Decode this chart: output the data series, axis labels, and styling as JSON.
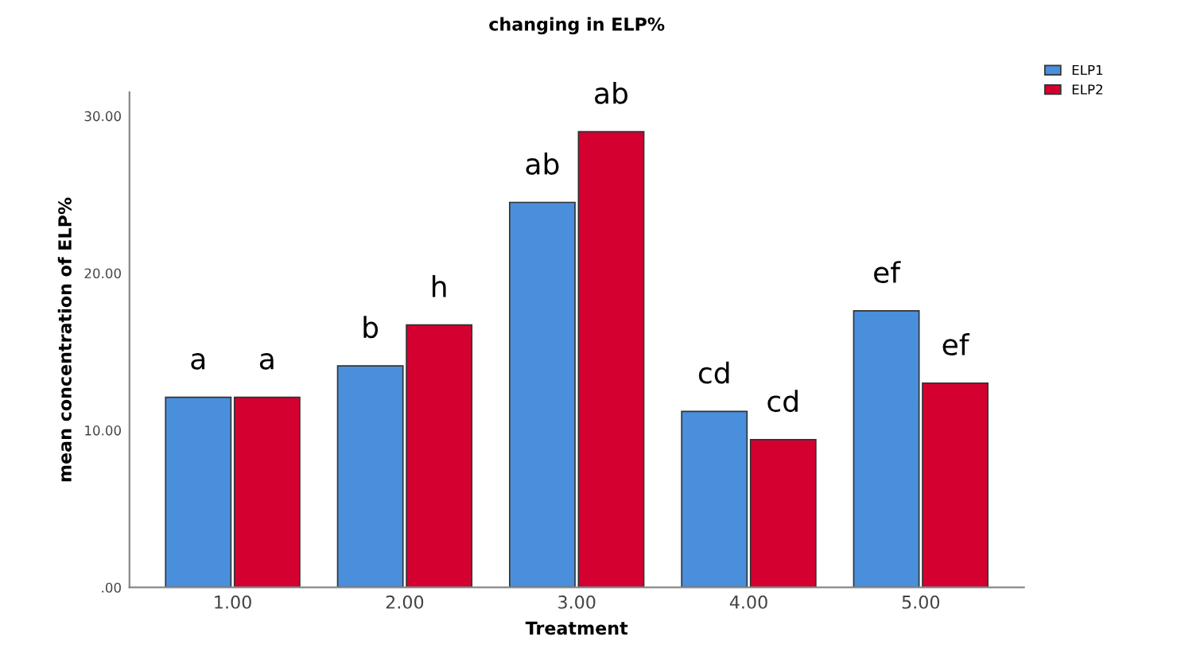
{
  "chart_data": {
    "type": "bar",
    "title": "changing in ELP%",
    "xlabel": "Treatment",
    "ylabel": "mean concentration of ELP%",
    "categories": [
      "1.00",
      "2.00",
      "3.00",
      "4.00",
      "5.00"
    ],
    "series": [
      {
        "name": "ELP1",
        "color": "#4a8fdc",
        "values": [
          12.1,
          14.1,
          24.5,
          11.2,
          17.6
        ]
      },
      {
        "name": "ELP2",
        "color": "#d40030",
        "values": [
          12.1,
          16.7,
          29.0,
          9.4,
          13.0
        ]
      }
    ],
    "ylim": [
      0,
      31.5
    ],
    "yticks": [
      {
        "value": 0,
        "label": ".00"
      },
      {
        "value": 10,
        "label": "10.00"
      },
      {
        "value": 20,
        "label": "20.00"
      },
      {
        "value": 30,
        "label": "30.00"
      }
    ],
    "grid": false,
    "legend": "top right",
    "annotations": [
      {
        "text": "a",
        "x": "1.00",
        "y": 12.1
      },
      {
        "text": "a",
        "x": "1.00",
        "y": 12.1
      },
      {
        "text": "b",
        "x": "2.00",
        "y": 14.1
      },
      {
        "text": "h",
        "x": "2.00",
        "y": 16.7
      },
      {
        "text": "ab",
        "x": "3.00",
        "y": 24.5
      },
      {
        "text": "ab",
        "x": "3.00",
        "y": 29.0
      },
      {
        "text": "cd",
        "x": "4.00",
        "y": 11.2
      },
      {
        "text": "cd",
        "x": "4.00",
        "y": 9.4
      },
      {
        "text": "ef",
        "x": "5.00",
        "y": 17.6
      },
      {
        "text": "ef",
        "x": "5.00",
        "y": 13.0
      }
    ]
  }
}
